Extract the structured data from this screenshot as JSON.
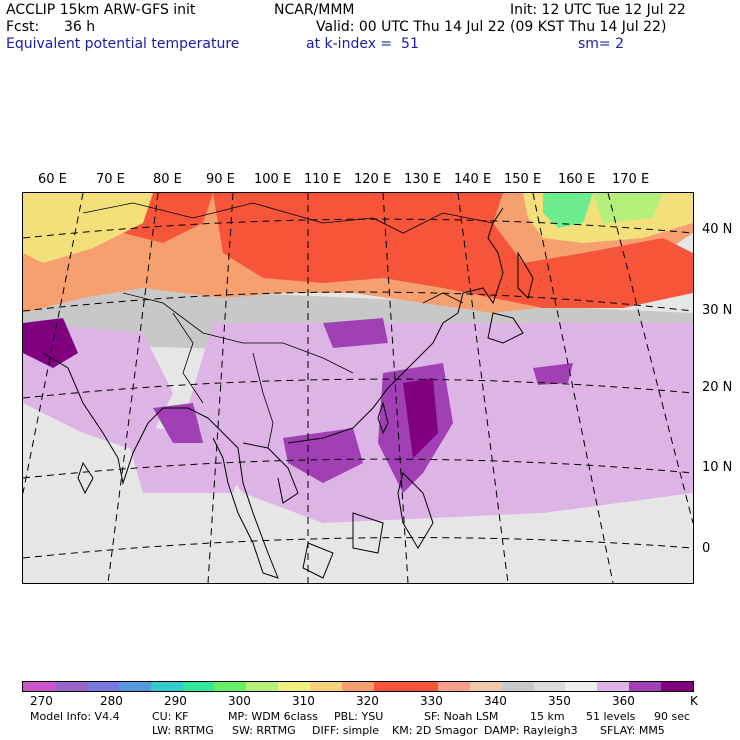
{
  "header": {
    "title_left": "ACCLIP 15km ARW-GFS init",
    "center": "NCAR/MMM",
    "init": "Init: 12 UTC Tue 12 Jul 22",
    "fcst_label": "Fcst:",
    "fcst_value": "36 h",
    "valid": "Valid: 00 UTC Thu 14 Jul 22 (09 KST Thu 14 Jul 22)",
    "field": "Equivalent potential temperature",
    "level": "at k-index =  51",
    "smooth": "sm= 2"
  },
  "map": {
    "lon_labels": [
      "60 E",
      "70 E",
      "80 E",
      "90 E",
      "100 E",
      "110 E",
      "120 E",
      "130 E",
      "140 E",
      "150 E",
      "160 E",
      "170 E"
    ],
    "lat_labels": [
      "40 N",
      "30 N",
      "20 N",
      "10 N",
      "0"
    ],
    "colors": {
      "warm_red": "#f6553a",
      "orange": "#f6a070",
      "yellow": "#f4e07a",
      "green": "#6cec8c",
      "gray": "#c8c8c8",
      "light_gray": "#e6e6e6",
      "light_purple": "#dcb4e6",
      "purple": "#a040b4",
      "dark_purple": "#800080"
    }
  },
  "colorbar": {
    "unit": "K",
    "tick_labels": [
      "270",
      "280",
      "290",
      "300",
      "310",
      "320",
      "330",
      "340",
      "350",
      "360"
    ],
    "colors": [
      "#cc55cc",
      "#9966cc",
      "#7777dd",
      "#5599dd",
      "#33cccc",
      "#33e699",
      "#66ee66",
      "#b4f07a",
      "#f0f080",
      "#f6d27a",
      "#f6a070",
      "#f6553a",
      "#f6553a",
      "#f6a08c",
      "#f0c8aa",
      "#c8c8c8",
      "#dcdcdc",
      "#f0f0f0",
      "#dcb4e6",
      "#a040b4",
      "#800080"
    ]
  },
  "footer": {
    "line1": [
      "Model Info: V4.4",
      "CU: KF",
      "MP: WDM 6class",
      "PBL: YSU",
      "SF: Noah LSM",
      "15 km",
      "51 levels",
      "90 sec"
    ],
    "line2": [
      "LW: RRTMG",
      "SW: RRTMG",
      "DIFF: simple",
      "KM: 2D Smagor",
      "DAMP: Rayleigh3",
      "SFLAY: MM5"
    ]
  }
}
